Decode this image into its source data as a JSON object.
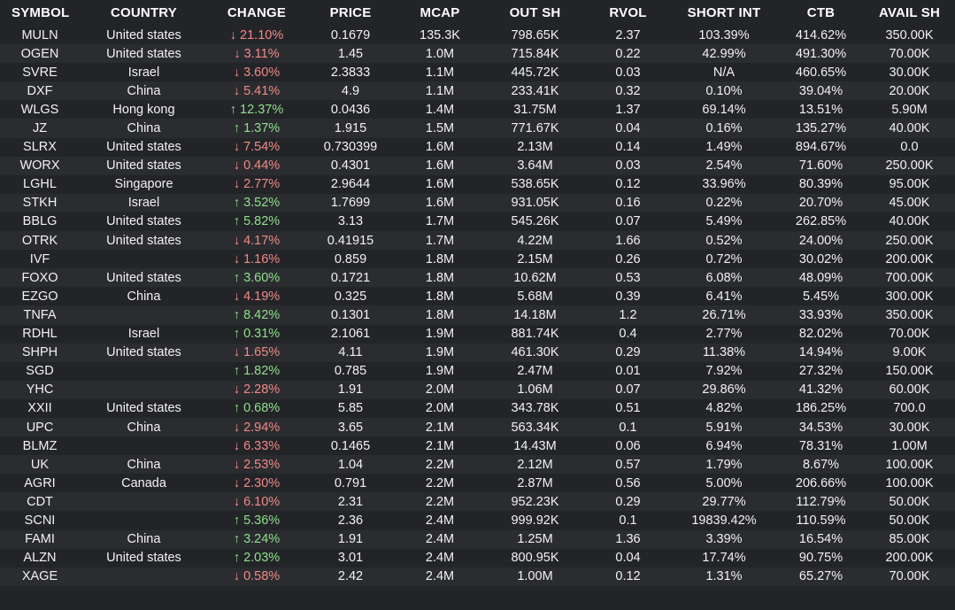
{
  "colors": {
    "background": "#232428",
    "row_alt": "#2b2c30",
    "negative": "#f08a86",
    "positive": "#8fe08a",
    "text": "#f2f2f2"
  },
  "columns": [
    "SYMBOL",
    "COUNTRY",
    "CHANGE",
    "PRICE",
    "MCAP",
    "OUT SH",
    "RVOL",
    "SHORT INT",
    "CTB",
    "AVAIL SH"
  ],
  "rows": [
    {
      "symbol": "MULN",
      "country": "United states",
      "direction": "down",
      "change": "21.10%",
      "price": "0.1679",
      "mcap": "135.3K",
      "out_sh": "798.65K",
      "rvol": "2.37",
      "short_int": "103.39%",
      "ctb": "414.62%",
      "avail_sh": "350.00K"
    },
    {
      "symbol": "OGEN",
      "country": "United states",
      "direction": "down",
      "change": "3.11%",
      "price": "1.45",
      "mcap": "1.0M",
      "out_sh": "715.84K",
      "rvol": "0.22",
      "short_int": "42.99%",
      "ctb": "491.30%",
      "avail_sh": "70.00K"
    },
    {
      "symbol": "SVRE",
      "country": "Israel",
      "direction": "down",
      "change": "3.60%",
      "price": "2.3833",
      "mcap": "1.1M",
      "out_sh": "445.72K",
      "rvol": "0.03",
      "short_int": "N/A",
      "ctb": "460.65%",
      "avail_sh": "30.00K"
    },
    {
      "symbol": "DXF",
      "country": "China",
      "direction": "down",
      "change": "5.41%",
      "price": "4.9",
      "mcap": "1.1M",
      "out_sh": "233.41K",
      "rvol": "0.32",
      "short_int": "0.10%",
      "ctb": "39.04%",
      "avail_sh": "20.00K"
    },
    {
      "symbol": "WLGS",
      "country": "Hong kong",
      "direction": "up",
      "change": "12.37%",
      "price": "0.0436",
      "mcap": "1.4M",
      "out_sh": "31.75M",
      "rvol": "1.37",
      "short_int": "69.14%",
      "ctb": "13.51%",
      "avail_sh": "5.90M"
    },
    {
      "symbol": "JZ",
      "country": "China",
      "direction": "up",
      "change": "1.37%",
      "price": "1.915",
      "mcap": "1.5M",
      "out_sh": "771.67K",
      "rvol": "0.04",
      "short_int": "0.16%",
      "ctb": "135.27%",
      "avail_sh": "40.00K"
    },
    {
      "symbol": "SLRX",
      "country": "United states",
      "direction": "down",
      "change": "7.54%",
      "price": "0.730399",
      "mcap": "1.6M",
      "out_sh": "2.13M",
      "rvol": "0.14",
      "short_int": "1.49%",
      "ctb": "894.67%",
      "avail_sh": "0.0"
    },
    {
      "symbol": "WORX",
      "country": "United states",
      "direction": "down",
      "change": "0.44%",
      "price": "0.4301",
      "mcap": "1.6M",
      "out_sh": "3.64M",
      "rvol": "0.03",
      "short_int": "2.54%",
      "ctb": "71.60%",
      "avail_sh": "250.00K"
    },
    {
      "symbol": "LGHL",
      "country": "Singapore",
      "direction": "down",
      "change": "2.77%",
      "price": "2.9644",
      "mcap": "1.6M",
      "out_sh": "538.65K",
      "rvol": "0.12",
      "short_int": "33.96%",
      "ctb": "80.39%",
      "avail_sh": "95.00K"
    },
    {
      "symbol": "STKH",
      "country": "Israel",
      "direction": "up",
      "change": "3.52%",
      "price": "1.7699",
      "mcap": "1.6M",
      "out_sh": "931.05K",
      "rvol": "0.16",
      "short_int": "0.22%",
      "ctb": "20.70%",
      "avail_sh": "45.00K"
    },
    {
      "symbol": "BBLG",
      "country": "United states",
      "direction": "up",
      "change": "5.82%",
      "price": "3.13",
      "mcap": "1.7M",
      "out_sh": "545.26K",
      "rvol": "0.07",
      "short_int": "5.49%",
      "ctb": "262.85%",
      "avail_sh": "40.00K"
    },
    {
      "symbol": "OTRK",
      "country": "United states",
      "direction": "down",
      "change": "4.17%",
      "price": "0.41915",
      "mcap": "1.7M",
      "out_sh": "4.22M",
      "rvol": "1.66",
      "short_int": "0.52%",
      "ctb": "24.00%",
      "avail_sh": "250.00K"
    },
    {
      "symbol": "IVF",
      "country": "",
      "direction": "down",
      "change": "1.16%",
      "price": "0.859",
      "mcap": "1.8M",
      "out_sh": "2.15M",
      "rvol": "0.26",
      "short_int": "0.72%",
      "ctb": "30.02%",
      "avail_sh": "200.00K"
    },
    {
      "symbol": "FOXO",
      "country": "United states",
      "direction": "up",
      "change": "3.60%",
      "price": "0.1721",
      "mcap": "1.8M",
      "out_sh": "10.62M",
      "rvol": "0.53",
      "short_int": "6.08%",
      "ctb": "48.09%",
      "avail_sh": "700.00K"
    },
    {
      "symbol": "EZGO",
      "country": "China",
      "direction": "down",
      "change": "4.19%",
      "price": "0.325",
      "mcap": "1.8M",
      "out_sh": "5.68M",
      "rvol": "0.39",
      "short_int": "6.41%",
      "ctb": "5.45%",
      "avail_sh": "300.00K"
    },
    {
      "symbol": "TNFA",
      "country": "",
      "direction": "up",
      "change": "8.42%",
      "price": "0.1301",
      "mcap": "1.8M",
      "out_sh": "14.18M",
      "rvol": "1.2",
      "short_int": "26.71%",
      "ctb": "33.93%",
      "avail_sh": "350.00K"
    },
    {
      "symbol": "RDHL",
      "country": "Israel",
      "direction": "up",
      "change": "0.31%",
      "price": "2.1061",
      "mcap": "1.9M",
      "out_sh": "881.74K",
      "rvol": "0.4",
      "short_int": "2.77%",
      "ctb": "82.02%",
      "avail_sh": "70.00K"
    },
    {
      "symbol": "SHPH",
      "country": "United states",
      "direction": "down",
      "change": "1.65%",
      "price": "4.11",
      "mcap": "1.9M",
      "out_sh": "461.30K",
      "rvol": "0.29",
      "short_int": "11.38%",
      "ctb": "14.94%",
      "avail_sh": "9.00K"
    },
    {
      "symbol": "SGD",
      "country": "",
      "direction": "up",
      "change": "1.82%",
      "price": "0.785",
      "mcap": "1.9M",
      "out_sh": "2.47M",
      "rvol": "0.01",
      "short_int": "7.92%",
      "ctb": "27.32%",
      "avail_sh": "150.00K"
    },
    {
      "symbol": "YHC",
      "country": "",
      "direction": "down",
      "change": "2.28%",
      "price": "1.91",
      "mcap": "2.0M",
      "out_sh": "1.06M",
      "rvol": "0.07",
      "short_int": "29.86%",
      "ctb": "41.32%",
      "avail_sh": "60.00K"
    },
    {
      "symbol": "XXII",
      "country": "United states",
      "direction": "up",
      "change": "0.68%",
      "price": "5.85",
      "mcap": "2.0M",
      "out_sh": "343.78K",
      "rvol": "0.51",
      "short_int": "4.82%",
      "ctb": "186.25%",
      "avail_sh": "700.0"
    },
    {
      "symbol": "UPC",
      "country": "China",
      "direction": "down",
      "change": "2.94%",
      "price": "3.65",
      "mcap": "2.1M",
      "out_sh": "563.34K",
      "rvol": "0.1",
      "short_int": "5.91%",
      "ctb": "34.53%",
      "avail_sh": "30.00K"
    },
    {
      "symbol": "BLMZ",
      "country": "",
      "direction": "down",
      "change": "6.33%",
      "price": "0.1465",
      "mcap": "2.1M",
      "out_sh": "14.43M",
      "rvol": "0.06",
      "short_int": "6.94%",
      "ctb": "78.31%",
      "avail_sh": "1.00M"
    },
    {
      "symbol": "UK",
      "country": "China",
      "direction": "down",
      "change": "2.53%",
      "price": "1.04",
      "mcap": "2.2M",
      "out_sh": "2.12M",
      "rvol": "0.57",
      "short_int": "1.79%",
      "ctb": "8.67%",
      "avail_sh": "100.00K"
    },
    {
      "symbol": "AGRI",
      "country": "Canada",
      "direction": "down",
      "change": "2.30%",
      "price": "0.791",
      "mcap": "2.2M",
      "out_sh": "2.87M",
      "rvol": "0.56",
      "short_int": "5.00%",
      "ctb": "206.66%",
      "avail_sh": "100.00K"
    },
    {
      "symbol": "CDT",
      "country": "",
      "direction": "down",
      "change": "6.10%",
      "price": "2.31",
      "mcap": "2.2M",
      "out_sh": "952.23K",
      "rvol": "0.29",
      "short_int": "29.77%",
      "ctb": "112.79%",
      "avail_sh": "50.00K"
    },
    {
      "symbol": "SCNI",
      "country": "",
      "direction": "up",
      "change": "5.36%",
      "price": "2.36",
      "mcap": "2.4M",
      "out_sh": "999.92K",
      "rvol": "0.1",
      "short_int": "19839.42%",
      "ctb": "110.59%",
      "avail_sh": "50.00K"
    },
    {
      "symbol": "FAMI",
      "country": "China",
      "direction": "up",
      "change": "3.24%",
      "price": "1.91",
      "mcap": "2.4M",
      "out_sh": "1.25M",
      "rvol": "1.36",
      "short_int": "3.39%",
      "ctb": "16.54%",
      "avail_sh": "85.00K"
    },
    {
      "symbol": "ALZN",
      "country": "United states",
      "direction": "up",
      "change": "2.03%",
      "price": "3.01",
      "mcap": "2.4M",
      "out_sh": "800.95K",
      "rvol": "0.04",
      "short_int": "17.74%",
      "ctb": "90.75%",
      "avail_sh": "200.00K"
    },
    {
      "symbol": "XAGE",
      "country": "",
      "direction": "down",
      "change": "0.58%",
      "price": "2.42",
      "mcap": "2.4M",
      "out_sh": "1.00M",
      "rvol": "0.12",
      "short_int": "1.31%",
      "ctb": "65.27%",
      "avail_sh": "70.00K"
    }
  ]
}
